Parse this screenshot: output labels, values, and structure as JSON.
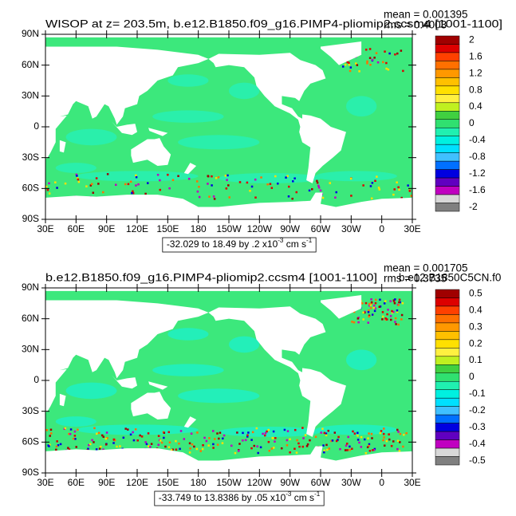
{
  "maps": [
    {
      "title": "WISOP at z= 203.5m, b.e12.B1850.f09_g16.PIMP4-pliomip2.ccsm4 [1001-1100]",
      "mean": "mean = 0.001395",
      "rms": "rms = 0.4003",
      "xlim": [
        30,
        390
      ],
      "ylim": [
        -90,
        90
      ],
      "xticks": [
        {
          "value": 30,
          "label": "30E"
        },
        {
          "value": 60,
          "label": "60E"
        },
        {
          "value": 90,
          "label": "90E"
        },
        {
          "value": 120,
          "label": "120E"
        },
        {
          "value": 150,
          "label": "150E"
        },
        180,
        {
          "value": 210,
          "label": "150W"
        },
        {
          "value": 240,
          "label": "120W"
        },
        {
          "value": 270,
          "label": "90W"
        },
        {
          "value": 300,
          "label": "60W"
        },
        {
          "value": 330,
          "label": "30W"
        },
        {
          "value": 360,
          "label": "0"
        },
        {
          "value": 390,
          "label": "30E"
        }
      ],
      "yticks": [
        {
          "value": 90,
          "label": "90N"
        },
        {
          "value": 60,
          "label": "60N"
        },
        {
          "value": 30,
          "label": "30N"
        },
        0,
        {
          "value": -30,
          "label": "30S"
        },
        {
          "value": -60,
          "label": "60S"
        },
        {
          "value": -90,
          "label": "90S"
        }
      ],
      "colorbar": {
        "levels": [
          2,
          1.6,
          1.2,
          0.8,
          0.4,
          0,
          -0.4,
          -0.8,
          -1.2,
          -1.6,
          -2
        ],
        "colors": [
          "#a00000",
          "#dd0000",
          "#ff4000",
          "#ff7000",
          "#ff9800",
          "#ffc000",
          "#ffe000",
          "#fff040",
          "#c0f020",
          "#40d040",
          "#30e070",
          "#20f0b0",
          "#00f0e0",
          "#00e0ff",
          "#40c0ff",
          "#0070ff",
          "#0000e0",
          "#6000c0",
          "#c000c0",
          "#d8d8d8",
          "#808080"
        ]
      },
      "info": [
        "-32.029 to 18.49 by .2 x10",
        "-3",
        " cm s",
        "-1"
      ]
    },
    {
      "title": "b.e12.B1850.f09_g16.PIMP4-pliomip2.ccsm4 [1001-1100]",
      "title2": "b.e12.B1850C5CN.f0",
      "mean": "mean = 0.001705",
      "rms": "rms = 0.3735",
      "xlim": [
        30,
        390
      ],
      "ylim": [
        -90,
        90
      ],
      "xticks": [
        {
          "value": 30,
          "label": "30E"
        },
        {
          "value": 60,
          "label": "60E"
        },
        {
          "value": 90,
          "label": "90E"
        },
        {
          "value": 120,
          "label": "120E"
        },
        {
          "value": 150,
          "label": "150E"
        },
        180,
        {
          "value": 210,
          "label": "150W"
        },
        {
          "value": 240,
          "label": "120W"
        },
        {
          "value": 270,
          "label": "90W"
        },
        {
          "value": 300,
          "label": "60W"
        },
        {
          "value": 330,
          "label": "30W"
        },
        {
          "value": 360,
          "label": "0"
        },
        {
          "value": 390,
          "label": "30E"
        }
      ],
      "yticks": [
        {
          "value": 90,
          "label": "90N"
        },
        {
          "value": 60,
          "label": "60N"
        },
        {
          "value": 30,
          "label": "30N"
        },
        0,
        {
          "value": -30,
          "label": "30S"
        },
        {
          "value": -60,
          "label": "60S"
        },
        {
          "value": -90,
          "label": "90S"
        }
      ],
      "colorbar": {
        "levels": [
          0.5,
          0.4,
          0.3,
          0.2,
          0.1,
          0,
          -0.1,
          -0.2,
          -0.3,
          -0.4,
          -0.5
        ],
        "colors": [
          "#a00000",
          "#dd0000",
          "#ff4000",
          "#ff7000",
          "#ff9800",
          "#ffc000",
          "#ffe000",
          "#fff040",
          "#c0f020",
          "#40d040",
          "#30e070",
          "#20f0b0",
          "#00f0e0",
          "#00e0ff",
          "#40c0ff",
          "#0070ff",
          "#0000e0",
          "#6000c0",
          "#c000c0",
          "#d8d8d8",
          "#808080"
        ]
      },
      "info": [
        "-33.749 to 13.8386 by .05 x10",
        "-3",
        " cm s",
        "-1"
      ]
    }
  ]
}
